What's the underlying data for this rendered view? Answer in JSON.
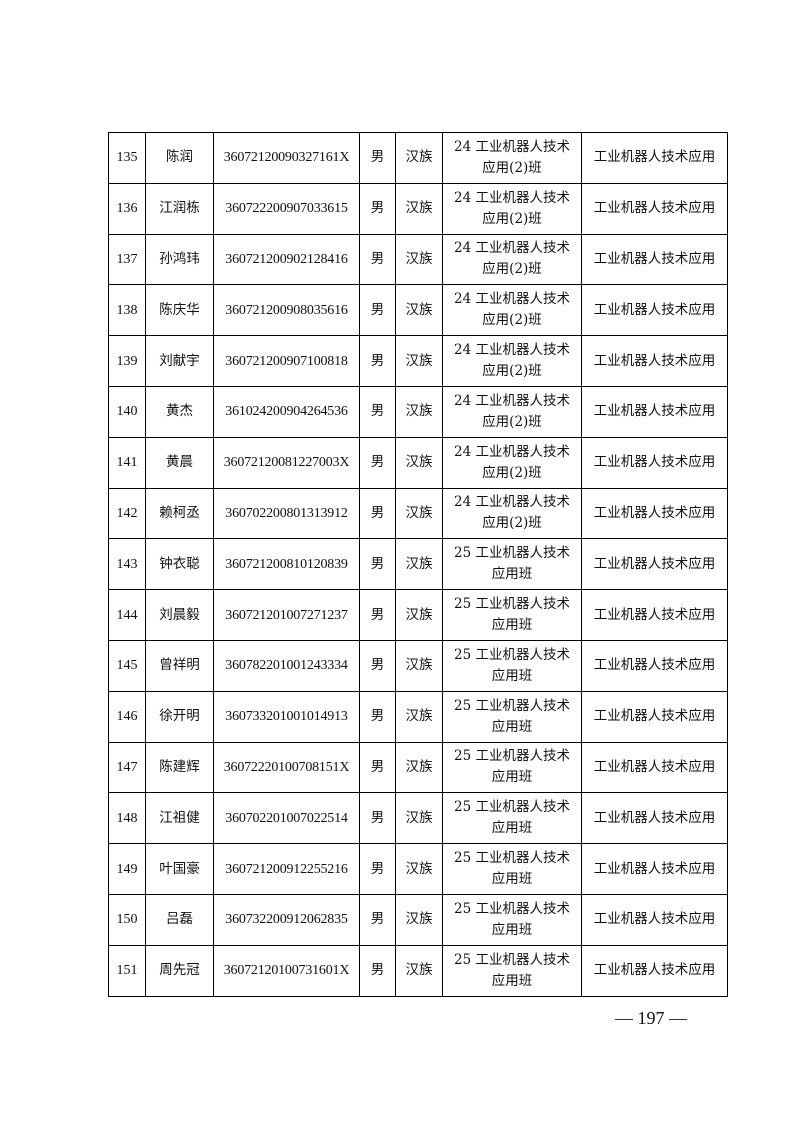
{
  "table": {
    "rows": [
      {
        "no": "135",
        "name": "陈润",
        "id": "36072120090327161X",
        "gender": "男",
        "ethnicity": "汉族",
        "class_line1": "24 工业机器人技术",
        "class_line2": "应用(2)班",
        "major": "工业机器人技术应用"
      },
      {
        "no": "136",
        "name": "江润栋",
        "id": "360722200907033615",
        "gender": "男",
        "ethnicity": "汉族",
        "class_line1": "24 工业机器人技术",
        "class_line2": "应用(2)班",
        "major": "工业机器人技术应用"
      },
      {
        "no": "137",
        "name": "孙鸿玮",
        "id": "360721200902128416",
        "gender": "男",
        "ethnicity": "汉族",
        "class_line1": "24 工业机器人技术",
        "class_line2": "应用(2)班",
        "major": "工业机器人技术应用"
      },
      {
        "no": "138",
        "name": "陈庆华",
        "id": "360721200908035616",
        "gender": "男",
        "ethnicity": "汉族",
        "class_line1": "24 工业机器人技术",
        "class_line2": "应用(2)班",
        "major": "工业机器人技术应用"
      },
      {
        "no": "139",
        "name": "刘献宇",
        "id": "360721200907100818",
        "gender": "男",
        "ethnicity": "汉族",
        "class_line1": "24 工业机器人技术",
        "class_line2": "应用(2)班",
        "major": "工业机器人技术应用"
      },
      {
        "no": "140",
        "name": "黄杰",
        "id": "361024200904264536",
        "gender": "男",
        "ethnicity": "汉族",
        "class_line1": "24 工业机器人技术",
        "class_line2": "应用(2)班",
        "major": "工业机器人技术应用"
      },
      {
        "no": "141",
        "name": "黄晨",
        "id": "36072120081227003X",
        "gender": "男",
        "ethnicity": "汉族",
        "class_line1": "24 工业机器人技术",
        "class_line2": "应用(2)班",
        "major": "工业机器人技术应用"
      },
      {
        "no": "142",
        "name": "赖柯丞",
        "id": "360702200801313912",
        "gender": "男",
        "ethnicity": "汉族",
        "class_line1": "24 工业机器人技术",
        "class_line2": "应用(2)班",
        "major": "工业机器人技术应用"
      },
      {
        "no": "143",
        "name": "钟衣聪",
        "id": "360721200810120839",
        "gender": "男",
        "ethnicity": "汉族",
        "class_line1": "25 工业机器人技术",
        "class_line2": "应用班",
        "major": "工业机器人技术应用"
      },
      {
        "no": "144",
        "name": "刘晨毅",
        "id": "360721201007271237",
        "gender": "男",
        "ethnicity": "汉族",
        "class_line1": "25 工业机器人技术",
        "class_line2": "应用班",
        "major": "工业机器人技术应用"
      },
      {
        "no": "145",
        "name": "曾祥明",
        "id": "360782201001243334",
        "gender": "男",
        "ethnicity": "汉族",
        "class_line1": "25 工业机器人技术",
        "class_line2": "应用班",
        "major": "工业机器人技术应用"
      },
      {
        "no": "146",
        "name": "徐开明",
        "id": "360733201001014913",
        "gender": "男",
        "ethnicity": "汉族",
        "class_line1": "25 工业机器人技术",
        "class_line2": "应用班",
        "major": "工业机器人技术应用"
      },
      {
        "no": "147",
        "name": "陈建辉",
        "id": "36072220100708151X",
        "gender": "男",
        "ethnicity": "汉族",
        "class_line1": "25 工业机器人技术",
        "class_line2": "应用班",
        "major": "工业机器人技术应用"
      },
      {
        "no": "148",
        "name": "江祖健",
        "id": "360702201007022514",
        "gender": "男",
        "ethnicity": "汉族",
        "class_line1": "25 工业机器人技术",
        "class_line2": "应用班",
        "major": "工业机器人技术应用"
      },
      {
        "no": "149",
        "name": "叶国豪",
        "id": "360721200912255216",
        "gender": "男",
        "ethnicity": "汉族",
        "class_line1": "25 工业机器人技术",
        "class_line2": "应用班",
        "major": "工业机器人技术应用"
      },
      {
        "no": "150",
        "name": "吕磊",
        "id": "360732200912062835",
        "gender": "男",
        "ethnicity": "汉族",
        "class_line1": "25 工业机器人技术",
        "class_line2": "应用班",
        "major": "工业机器人技术应用"
      },
      {
        "no": "151",
        "name": "周先冠",
        "id": "36072120100731601X",
        "gender": "男",
        "ethnicity": "汉族",
        "class_line1": "25 工业机器人技术",
        "class_line2": "应用班",
        "major": "工业机器人技术应用"
      }
    ]
  },
  "footer": {
    "page_number": "— 197 —"
  }
}
